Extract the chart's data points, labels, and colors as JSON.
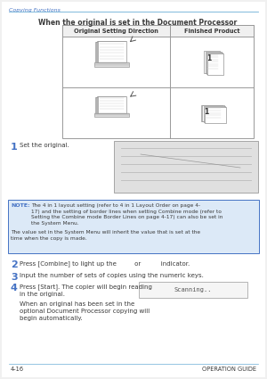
{
  "bg_color": "#ffffff",
  "header_text": "Copying Functions",
  "header_line_color": "#6baed6",
  "footer_left": "4-16",
  "footer_right": "OPERATION GUIDE",
  "section_title": "When the original is set in the Document Processor",
  "table_header_left": "Original Setting Direction",
  "table_header_right": "Finished Product",
  "note_label": "NOTE:",
  "note_line1": "The 4 in 1 layout setting (refer to 4 in 1 Layout Order on page 4-",
  "note_line2": "17) and the setting of border lines when setting Combine mode (refer to",
  "note_line3": "Setting the Combine mode Border Lines on page 4-17) can also be set in",
  "note_line4": "the System Menu.",
  "note_line5": "The value set in the System Menu will inherit the value that is set at the",
  "note_line6": "time when the copy is made.",
  "step1_num": "1",
  "step1_text": "Set the original.",
  "step2_num": "2",
  "step2_text": "Press [Combine] to light up the         or          indicator.",
  "step3_num": "3",
  "step3_text": "Input the number of sets of copies using the numeric keys.",
  "step4_num": "4",
  "step4_text_a": "Press [Start]. The copier will begin reading",
  "step4_text_b": "in the original.",
  "step4_text2a": "When an original has been set in the",
  "step4_text2b": "optional Document Processor copying will",
  "step4_text2c": "begin automatically.",
  "scanning_text": "Scanning..",
  "step_num_color": "#4472c4",
  "text_color": "#3a3a3a",
  "table_border_color": "#999999",
  "note_bg_color": "#dce9f7",
  "note_border_color": "#4472c4",
  "scan_border_color": "#aaaaaa",
  "scan_bg_color": "#f5f5f5",
  "page_bg": "#f0f0f0"
}
